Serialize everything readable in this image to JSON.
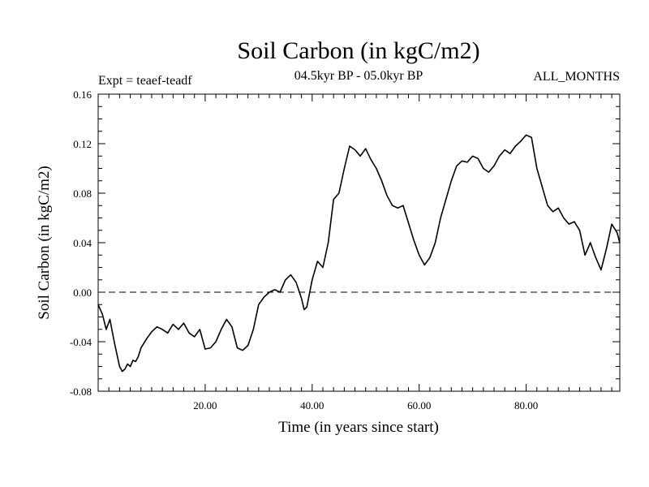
{
  "chart_data": {
    "type": "line",
    "title": "Soil Carbon (in kgC/m2)",
    "subtitle": "04.5kyr BP - 05.0kyr BP",
    "left_label": "Expt = teaef-teadf",
    "right_label": "ALL_MONTHS",
    "xlabel": "Time (in years since start)",
    "ylabel": "Soil Carbon (in kgC/m2)",
    "xlim": [
      0,
      97.5
    ],
    "ylim": [
      -0.08,
      0.16
    ],
    "x_ticks": [
      20,
      40,
      60,
      80
    ],
    "x_tick_labels": [
      "20.00",
      "40.00",
      "60.00",
      "80.00"
    ],
    "y_ticks": [
      -0.08,
      -0.04,
      0.0,
      0.04,
      0.08,
      0.12,
      0.16
    ],
    "y_tick_labels": [
      "-0.08",
      "-0.04",
      "0.00",
      "0.04",
      "0.08",
      "0.12",
      "0.16"
    ],
    "zero_line": 0.0,
    "grid": false,
    "line_color": "#000000",
    "series": [
      {
        "x": [
          0,
          0.8,
          1.5,
          2.2,
          3.0,
          3.5,
          4.0,
          4.5,
          5.0,
          5.5,
          6.0,
          6.5,
          7.0,
          7.5,
          8.0,
          9.0,
          10.0,
          11.0,
          12.0,
          13.0,
          14.0,
          15.0,
          16.0,
          17.0,
          18.0,
          19.0,
          20.0,
          21.0,
          22.0,
          23.0,
          24.0,
          25.0,
          26.0,
          27.0,
          28.0,
          29.0,
          30.0,
          31.0,
          32.0,
          33.0,
          34.0,
          35.0,
          36.0,
          37.0,
          38.0,
          38.5,
          39.0,
          40.0,
          41.0,
          42.0,
          43.0,
          44.0,
          45.0,
          46.0,
          47.0,
          48.0,
          49.0,
          50.0,
          51.0,
          52.0,
          53.0,
          54.0,
          55.0,
          56.0,
          57.0,
          58.0,
          59.0,
          60.0,
          61.0,
          62.0,
          63.0,
          64.0,
          65.0,
          66.0,
          67.0,
          68.0,
          69.0,
          70.0,
          71.0,
          72.0,
          73.0,
          74.0,
          75.0,
          76.0,
          77.0,
          78.0,
          79.0,
          80.0,
          81.0,
          82.0,
          83.0,
          84.0,
          85.0,
          86.0,
          87.0,
          88.0,
          89.0,
          90.0,
          91.0,
          92.0,
          93.0,
          94.0,
          95.0,
          96.0,
          97.0,
          97.5
        ],
        "y": [
          -0.01,
          -0.018,
          -0.03,
          -0.022,
          -0.04,
          -0.05,
          -0.06,
          -0.064,
          -0.062,
          -0.058,
          -0.06,
          -0.055,
          -0.056,
          -0.052,
          -0.045,
          -0.038,
          -0.032,
          -0.028,
          -0.03,
          -0.033,
          -0.026,
          -0.03,
          -0.025,
          -0.033,
          -0.036,
          -0.03,
          -0.046,
          -0.045,
          -0.04,
          -0.03,
          -0.022,
          -0.028,
          -0.045,
          -0.047,
          -0.043,
          -0.03,
          -0.01,
          -0.004,
          0.0,
          0.002,
          0.0,
          0.01,
          0.014,
          0.008,
          -0.005,
          -0.014,
          -0.012,
          0.01,
          0.025,
          0.02,
          0.04,
          0.075,
          0.08,
          0.1,
          0.118,
          0.115,
          0.11,
          0.116,
          0.107,
          0.1,
          0.09,
          0.078,
          0.07,
          0.068,
          0.07,
          0.056,
          0.042,
          0.03,
          0.022,
          0.028,
          0.04,
          0.06,
          0.075,
          0.09,
          0.102,
          0.106,
          0.105,
          0.11,
          0.108,
          0.1,
          0.097,
          0.102,
          0.11,
          0.115,
          0.112,
          0.118,
          0.122,
          0.127,
          0.125,
          0.1,
          0.085,
          0.07,
          0.065,
          0.068,
          0.06,
          0.055,
          0.057,
          0.05,
          0.03,
          0.04,
          0.028,
          0.018,
          0.035,
          0.055,
          0.048,
          0.04
        ]
      }
    ]
  }
}
